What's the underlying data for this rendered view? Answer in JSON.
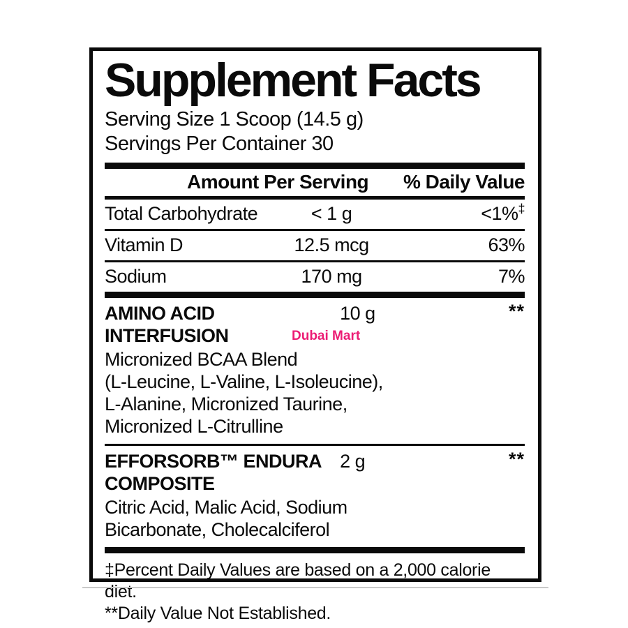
{
  "watermark": {
    "text": "Dubai Mart",
    "color": "#EC1C74"
  },
  "label": {
    "title": "Supplement Facts",
    "serving_size": "Serving Size 1 Scoop (14.5 g)",
    "servings_per_container": "Servings Per Container 30",
    "columns": {
      "amount": "Amount Per Serving",
      "daily_value": "% Daily Value"
    },
    "nutrients": [
      {
        "name": "Total Carbohydrate",
        "amount": "< 1 g",
        "daily_value": "<1%",
        "daily_value_sup": "‡"
      },
      {
        "name": "Vitamin D",
        "amount": "12.5 mcg",
        "daily_value": "63%",
        "daily_value_sup": ""
      },
      {
        "name": "Sodium",
        "amount": "170 mg",
        "daily_value": "7%",
        "daily_value_sup": ""
      }
    ],
    "sections": [
      {
        "name_lines": [
          "AMINO ACID",
          "INTERFUSION"
        ],
        "amount": "10 g",
        "daily_value": "**",
        "ingredients": [
          "Micronized BCAA Blend",
          "(L-Leucine, L-Valine, L-Isoleucine),",
          "L-Alanine, Micronized Taurine,",
          "Micronized L-Citrulline"
        ]
      },
      {
        "name_lines": [
          "EFFORSORB™ ENDURA",
          "COMPOSITE"
        ],
        "amount": "2 g",
        "daily_value": "**",
        "ingredients": [
          "Citric Acid, Malic Acid, Sodium",
          "Bicarbonate, Cholecalciferol"
        ]
      }
    ],
    "footnotes": [
      "‡Percent Daily Values are based on a 2,000 calorie diet.",
      "**Daily Value Not Established."
    ]
  }
}
